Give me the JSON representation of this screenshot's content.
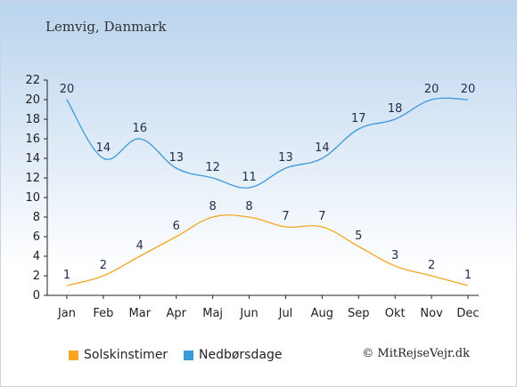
{
  "chart_data": {
    "type": "line",
    "title": "Lemvig, Danmark",
    "categories": [
      "Jan",
      "Feb",
      "Mar",
      "Apr",
      "Maj",
      "Jun",
      "Jul",
      "Aug",
      "Sep",
      "Okt",
      "Nov",
      "Dec"
    ],
    "series": [
      {
        "name": "Solskinstimer",
        "color": "#f5a623",
        "values": [
          1,
          2,
          4,
          6,
          8,
          8,
          7,
          7,
          5,
          3,
          2,
          1
        ]
      },
      {
        "name": "Nedbørsdage",
        "color": "#3a9ad9",
        "values": [
          20,
          14,
          16,
          13,
          12,
          11,
          13,
          14,
          17,
          18,
          20,
          20
        ]
      }
    ],
    "ylim": [
      0,
      22
    ],
    "yticks": [
      0,
      2,
      4,
      6,
      8,
      10,
      12,
      14,
      16,
      18,
      20,
      22
    ],
    "grid": false,
    "legend_position": "bottom"
  },
  "credit": "© MitRejseVejr.dk"
}
